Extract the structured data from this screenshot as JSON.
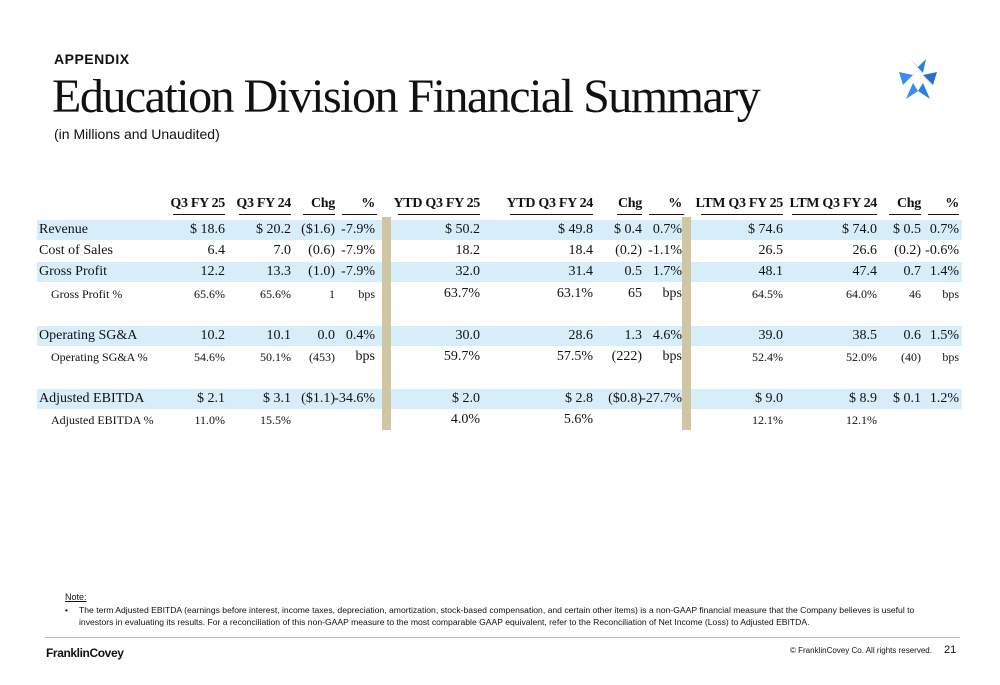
{
  "header": {
    "eyebrow": "APPENDIX",
    "title": "Education Division Financial Summary",
    "subtitle": "(in Millions and Unaudited)",
    "logo_icon": "star-compass-icon",
    "logo_color": "#2f7fe0"
  },
  "table": {
    "columns": [
      "Q3 FY 25",
      "Q3 FY 24",
      "Chg",
      "%",
      "YTD Q3 FY 25",
      "YTD Q3 FY 24",
      "Chg",
      "%",
      "LTM Q3 FY 25",
      "LTM Q3 FY 24",
      "Chg",
      "%"
    ],
    "rows": [
      {
        "label": "Revenue",
        "values": [
          "$ 18.6",
          "$ 20.2",
          "($1.6)",
          "-7.9%",
          "$ 50.2",
          "$ 49.8",
          "$ 0.4",
          "0.7%",
          "$ 74.6",
          "$ 74.0",
          "$ 0.5",
          "0.7%"
        ]
      },
      {
        "label": "Cost of Sales",
        "values": [
          "6.4",
          "7.0",
          "(0.6)",
          "-7.9%",
          "18.2",
          "18.4",
          "(0.2)",
          "-1.1%",
          "26.5",
          "26.6",
          "(0.2)",
          "-0.6%"
        ]
      },
      {
        "label": "Gross Profit",
        "values": [
          "12.2",
          "13.3",
          "(1.0)",
          "-7.9%",
          "32.0",
          "31.4",
          "0.5",
          "1.7%",
          "48.1",
          "47.4",
          "0.7",
          "1.4%"
        ]
      },
      {
        "label": "Gross Profit %",
        "values": [
          "65.6%",
          "65.6%",
          "1",
          "bps",
          "63.7%",
          "63.1%",
          "65",
          "bps",
          "64.5%",
          "64.0%",
          "46",
          "bps"
        ]
      },
      {
        "label": "Operating SG&A",
        "values": [
          "10.2",
          "10.1",
          "0.0",
          "0.4%",
          "30.0",
          "28.6",
          "1.3",
          "4.6%",
          "39.0",
          "38.5",
          "0.6",
          "1.5%"
        ]
      },
      {
        "label": "Operating SG&A %",
        "values": [
          "54.6%",
          "50.1%",
          "(453)",
          "bps",
          "59.7%",
          "57.5%",
          "(222)",
          "bps",
          "52.4%",
          "52.0%",
          "(40)",
          "bps"
        ]
      },
      {
        "label": "Adjusted EBITDA",
        "values": [
          "$ 2.1",
          "$ 3.1",
          "($1.1)",
          "-34.6%",
          "$ 2.0",
          "$ 2.8",
          "($0.8)",
          "-27.7%",
          "$ 9.0",
          "$ 8.9",
          "$ 0.1",
          "1.2%"
        ]
      },
      {
        "label": "Adjusted EBITDA %",
        "values": [
          "11.0%",
          "15.5%",
          "",
          "",
          "4.0%",
          "5.6%",
          "",
          "",
          "12.1%",
          "12.1%",
          "",
          ""
        ]
      }
    ]
  },
  "note": {
    "heading": "Note:",
    "bullet": "•",
    "text": "The term Adjusted EBITDA (earnings before interest, income taxes, depreciation, amortization, stock-based compensation, and certain other items) is a non-GAAP financial measure that the Company believes is useful to investors in evaluating its results.  For a reconciliation of this non-GAAP measure to the most comparable GAAP equivalent, refer to the Reconciliation of Net Income (Loss) to Adjusted EBITDA."
  },
  "footer": {
    "brand": "FranklinCovey",
    "copyright": "© FranklinCovey Co. All rights reserved.",
    "page": "21"
  },
  "colors": {
    "row_shade": "#d7eefa",
    "separator": "#cfc7a3"
  }
}
